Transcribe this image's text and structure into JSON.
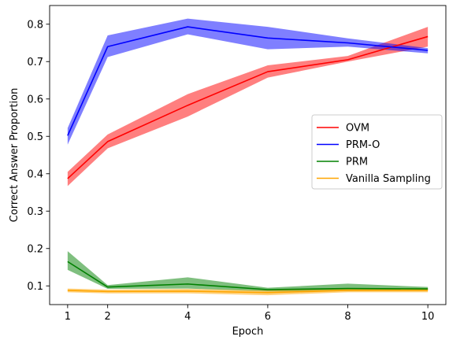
{
  "chart_data": {
    "type": "line",
    "xlabel": "Epoch",
    "ylabel": "Correct Answer Proportion",
    "x": [
      1,
      2,
      4,
      6,
      8,
      10
    ],
    "xticks": [
      1,
      2,
      4,
      6,
      8,
      10
    ],
    "yticks": [
      0.1,
      0.2,
      0.3,
      0.4,
      0.5,
      0.6,
      0.7,
      0.8
    ],
    "xlim": [
      0.55,
      10.45
    ],
    "ylim": [
      0.05,
      0.85
    ],
    "grid": false,
    "legend_position": "center-right",
    "series": [
      {
        "name": "OVM",
        "color": "#ff0000",
        "values": [
          0.387,
          0.486,
          0.583,
          0.673,
          0.705,
          0.767
        ],
        "lower": [
          0.367,
          0.468,
          0.553,
          0.657,
          0.7,
          0.74
        ],
        "upper": [
          0.405,
          0.505,
          0.613,
          0.69,
          0.715,
          0.793
        ]
      },
      {
        "name": "PRM-O",
        "color": "#0000ff",
        "values": [
          0.502,
          0.74,
          0.793,
          0.763,
          0.75,
          0.73
        ],
        "lower": [
          0.478,
          0.712,
          0.773,
          0.733,
          0.74,
          0.722
        ],
        "upper": [
          0.522,
          0.77,
          0.815,
          0.793,
          0.762,
          0.736
        ]
      },
      {
        "name": "PRM",
        "color": "#008000",
        "values": [
          0.165,
          0.097,
          0.105,
          0.09,
          0.093,
          0.092
        ],
        "lower": [
          0.143,
          0.092,
          0.093,
          0.085,
          0.086,
          0.088
        ],
        "upper": [
          0.193,
          0.102,
          0.123,
          0.095,
          0.106,
          0.097
        ]
      },
      {
        "name": "Vanilla Sampling",
        "color": "#ffa500",
        "values": [
          0.088,
          0.085,
          0.086,
          0.082,
          0.088,
          0.088
        ],
        "lower": [
          0.083,
          0.08,
          0.08,
          0.075,
          0.083,
          0.083
        ],
        "upper": [
          0.093,
          0.09,
          0.092,
          0.088,
          0.094,
          0.094
        ]
      }
    ]
  }
}
